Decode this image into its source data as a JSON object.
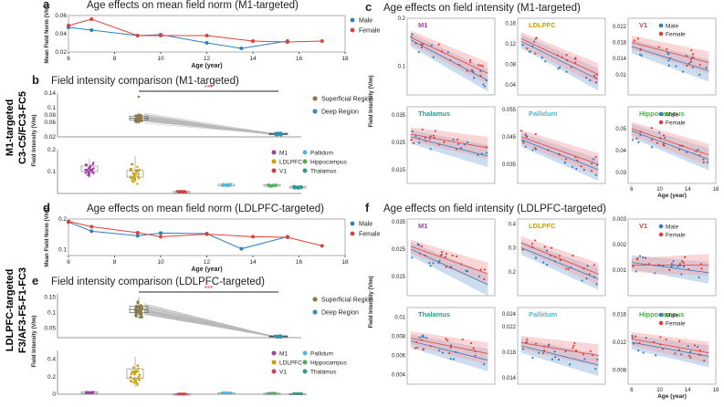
{
  "colors": {
    "male": "#2f7fbf",
    "female": "#e0403a",
    "male_band": "#8fb4de",
    "female_band": "#f3a3a3",
    "superficial": "#8a7a4a",
    "deep": "#3a8fb0",
    "M1": "#a040a0",
    "LDLPFC": "#c8a000",
    "V1": "#d04040",
    "Pallidum": "#50b8d8",
    "Hippocampus": "#50b050",
    "Thalamus": "#2f9a8a",
    "connector": "#b8b8b8",
    "sig": "#e0403a"
  },
  "side_labels": {
    "m1": [
      "M1-targeted",
      "C3-C5/FC3-FC5"
    ],
    "ldlpfc": [
      "LDLPFC-targeted",
      "F3/AF3-F5-F1-FC3"
    ]
  },
  "chart_data": [
    {
      "id": "a",
      "type": "line",
      "panel_letter": "a",
      "title": "Age effects on mean field norm (M1-targeted)",
      "xlabel": "Age (year)",
      "ylabel": "Mean Field Norm (V/m)",
      "xlim": [
        6,
        18
      ],
      "ylim": [
        0.02,
        0.06
      ],
      "xticks": [
        6,
        8,
        10,
        12,
        14,
        16,
        18
      ],
      "yticks": [
        0.02,
        0.04,
        0.06
      ],
      "legend": [
        "Male",
        "Female"
      ],
      "series": [
        {
          "name": "Male",
          "x": [
            6,
            7,
            9,
            10,
            12,
            13.5,
            15.5
          ],
          "y": [
            0.047,
            0.044,
            0.038,
            0.039,
            0.03,
            0.024,
            0.032
          ]
        },
        {
          "name": "Female",
          "x": [
            6,
            7,
            9,
            10,
            12,
            14,
            15.5,
            17
          ],
          "y": [
            0.049,
            0.056,
            0.038,
            0.038,
            0.038,
            0.032,
            0.031,
            0.032
          ]
        }
      ]
    },
    {
      "id": "b",
      "type": "box",
      "panel_letter": "b",
      "title": "Field intensity comparison (M1-targeted)",
      "ylabel": "Field Intensity (V/m)",
      "significance": "***",
      "upper": {
        "ylim": [
          0.02,
          0.14
        ],
        "yticks": [
          0.02,
          0.06,
          0.08,
          0.1,
          0.14
        ],
        "groups": [
          {
            "name": "Superficial Region",
            "q1": 0.066,
            "median": 0.071,
            "q3": 0.077,
            "min": 0.055,
            "max": 0.085,
            "max_outlier": 0.13
          },
          {
            "name": "Deep Region",
            "q1": 0.026,
            "median": 0.028,
            "q3": 0.03,
            "min": 0.024,
            "max": 0.033
          }
        ]
      },
      "lower": {
        "ylim": [
          0.0,
          0.2
        ],
        "yticks": [
          0.1,
          0.2
        ],
        "groups": [
          {
            "name": "M1",
            "median": 0.11,
            "q1": 0.1,
            "q3": 0.125,
            "min": 0.07,
            "max": 0.16
          },
          {
            "name": "LDLPFC",
            "median": 0.09,
            "q1": 0.075,
            "q3": 0.105,
            "min": 0.05,
            "max": 0.17
          },
          {
            "name": "V1",
            "median": 0.008,
            "q1": 0.006,
            "q3": 0.01,
            "min": 0.004,
            "max": 0.012
          },
          {
            "name": "Pallidum",
            "median": 0.038,
            "q1": 0.034,
            "q3": 0.042,
            "min": 0.03,
            "max": 0.046
          },
          {
            "name": "Hippocampus",
            "median": 0.036,
            "q1": 0.033,
            "q3": 0.04,
            "min": 0.029,
            "max": 0.044
          },
          {
            "name": "Thalamus",
            "median": 0.028,
            "q1": 0.025,
            "q3": 0.031,
            "min": 0.022,
            "max": 0.034
          }
        ]
      }
    },
    {
      "id": "c",
      "type": "scatter",
      "panel_letter": "c",
      "title": "Age effects on field intensity (M1-targeted)",
      "ylabel": "Field Intensity (V/m)",
      "xlabel": "Age (year)",
      "xlim": [
        5.5,
        18
      ],
      "xticks": [
        6,
        10,
        14,
        18
      ],
      "legend": [
        "Male",
        "Female"
      ],
      "subplots": [
        {
          "name": "M1",
          "ylim": [
            0.04,
            0.2
          ],
          "yticks": [
            0.1,
            0.2
          ],
          "fit_male": [
            0.155,
            0.07
          ],
          "fit_female": [
            0.16,
            0.085
          ]
        },
        {
          "name": "LDLPFC",
          "ylim": [
            0.02,
            0.17
          ],
          "yticks": [
            0.04,
            0.08,
            0.12,
            0.16
          ],
          "fit_male": [
            0.125,
            0.05
          ],
          "fit_female": [
            0.13,
            0.06
          ]
        },
        {
          "name": "V1",
          "ylim": [
            0.005,
            0.024
          ],
          "yticks": [
            0.01,
            0.014,
            0.018,
            0.022
          ],
          "fit_male": [
            0.017,
            0.011
          ],
          "fit_female": [
            0.018,
            0.013
          ]
        },
        {
          "name": "Thalamus",
          "ylim": [
            0.01,
            0.038
          ],
          "yticks": [
            0.015,
            0.025,
            0.035
          ],
          "fit_male": [
            0.027,
            0.02
          ],
          "fit_female": [
            0.028,
            0.023
          ]
        },
        {
          "name": "Pallidum",
          "ylim": [
            0.028,
            0.056
          ],
          "yticks": [
            0.035,
            0.045,
            0.055
          ],
          "fit_male": [
            0.044,
            0.033
          ],
          "fit_female": [
            0.045,
            0.035
          ]
        },
        {
          "name": "Hippocampus",
          "ylim": [
            0.025,
            0.06
          ],
          "yticks": [
            0.03,
            0.04,
            0.05
          ],
          "fit_male": [
            0.049,
            0.036
          ],
          "fit_female": [
            0.05,
            0.038
          ]
        }
      ]
    },
    {
      "id": "d",
      "type": "line",
      "panel_letter": "d",
      "title": "Age effects on mean field norm (LDLPFC-targeted)",
      "xlabel": "Age (year)",
      "ylabel": "Mean Field Norm (V/m)",
      "xlim": [
        6,
        18
      ],
      "ylim": [
        0.08,
        0.2
      ],
      "xticks": [
        6,
        8,
        10,
        12,
        14,
        16,
        18
      ],
      "yticks": [
        0.1,
        0.2
      ],
      "legend": [
        "Male",
        "Female"
      ],
      "series": [
        {
          "name": "Male",
          "x": [
            6,
            7,
            9,
            10,
            12,
            13.5,
            15.5
          ],
          "y": [
            0.19,
            0.16,
            0.145,
            0.154,
            0.152,
            0.102,
            0.142
          ]
        },
        {
          "name": "Female",
          "x": [
            6,
            7,
            9,
            10,
            12,
            14,
            15.5,
            17
          ],
          "y": [
            0.192,
            0.175,
            0.155,
            0.142,
            0.15,
            0.142,
            0.14,
            0.112
          ]
        }
      ]
    },
    {
      "id": "e",
      "type": "box",
      "panel_letter": "e",
      "title": "Field intensity comparison (LDLPFC-targeted)",
      "ylabel": "Field Intensity (V/m)",
      "significance": "***",
      "upper": {
        "ylim": [
          0.02,
          0.16
        ],
        "yticks": [
          0.05,
          0.1,
          0.15
        ],
        "groups": [
          {
            "name": "Superficial Region",
            "q1": 0.1,
            "median": 0.11,
            "q3": 0.12,
            "min": 0.08,
            "max": 0.15
          },
          {
            "name": "Deep Region",
            "q1": 0.022,
            "median": 0.024,
            "q3": 0.026,
            "min": 0.02,
            "max": 0.028
          }
        ]
      },
      "lower": {
        "ylim": [
          0.0,
          0.5
        ],
        "yticks": [
          0.0,
          0.2,
          0.4
        ],
        "groups": [
          {
            "name": "M1",
            "median": 0.02,
            "q1": 0.015,
            "q3": 0.025,
            "min": 0.01,
            "max": 0.03
          },
          {
            "name": "LDLPFC",
            "median": 0.24,
            "q1": 0.18,
            "q3": 0.29,
            "min": 0.08,
            "max": 0.43
          },
          {
            "name": "V1",
            "median": 0.004,
            "q1": 0.003,
            "q3": 0.005,
            "min": 0.002,
            "max": 0.006
          },
          {
            "name": "Pallidum",
            "median": 0.016,
            "q1": 0.014,
            "q3": 0.018,
            "min": 0.012,
            "max": 0.02
          },
          {
            "name": "Hippocampus",
            "median": 0.01,
            "q1": 0.009,
            "q3": 0.012,
            "min": 0.008,
            "max": 0.014
          },
          {
            "name": "Thalamus",
            "median": 0.008,
            "q1": 0.007,
            "q3": 0.009,
            "min": 0.006,
            "max": 0.01
          }
        ]
      }
    },
    {
      "id": "f",
      "type": "scatter",
      "panel_letter": "f",
      "title": "Age effects on field intensity (LDLPFC-targeted)",
      "ylabel": "Field Intensity (V/m)",
      "xlabel": "Age (year)",
      "xlim": [
        5.5,
        18
      ],
      "xticks": [
        6,
        10,
        14,
        18
      ],
      "legend": [
        "Male",
        "Female"
      ],
      "subplots": [
        {
          "name": "M1",
          "ylim": [
            0.008,
            0.036
          ],
          "yticks": [
            0.015,
            0.025,
            0.035
          ],
          "fit_male": [
            0.025,
            0.012
          ],
          "fit_female": [
            0.026,
            0.016
          ]
        },
        {
          "name": "LDLPFC",
          "ylim": [
            0.1,
            0.42
          ],
          "yticks": [
            0.2,
            0.3,
            0.4
          ],
          "fit_male": [
            0.3,
            0.17
          ],
          "fit_female": [
            0.32,
            0.19
          ]
        },
        {
          "name": "V1",
          "ylim": [
            0.0,
            0.003
          ],
          "yticks": [
            0.001,
            0.002,
            0.003
          ],
          "fit_male": [
            0.0013,
            0.0009
          ],
          "fit_female": [
            0.0012,
            0.0012
          ]
        },
        {
          "name": "Thalamus",
          "ylim": [
            0.003,
            0.011
          ],
          "yticks": [
            0.004,
            0.006,
            0.008,
            0.01
          ],
          "fit_male": [
            0.0075,
            0.0055
          ],
          "fit_female": [
            0.0078,
            0.0062
          ]
        },
        {
          "name": "Pallidum",
          "ylim": [
            0.013,
            0.025
          ],
          "yticks": [
            0.014,
            0.018,
            0.022,
            0.024
          ],
          "fit_male": [
            0.019,
            0.016
          ],
          "fit_female": [
            0.0195,
            0.0175
          ]
        },
        {
          "name": "Hippocampus",
          "ylim": [
            0.006,
            0.017
          ],
          "yticks": [
            0.008,
            0.012,
            0.016
          ],
          "fit_male": [
            0.012,
            0.01
          ],
          "fit_female": [
            0.0125,
            0.0105
          ]
        }
      ]
    }
  ]
}
